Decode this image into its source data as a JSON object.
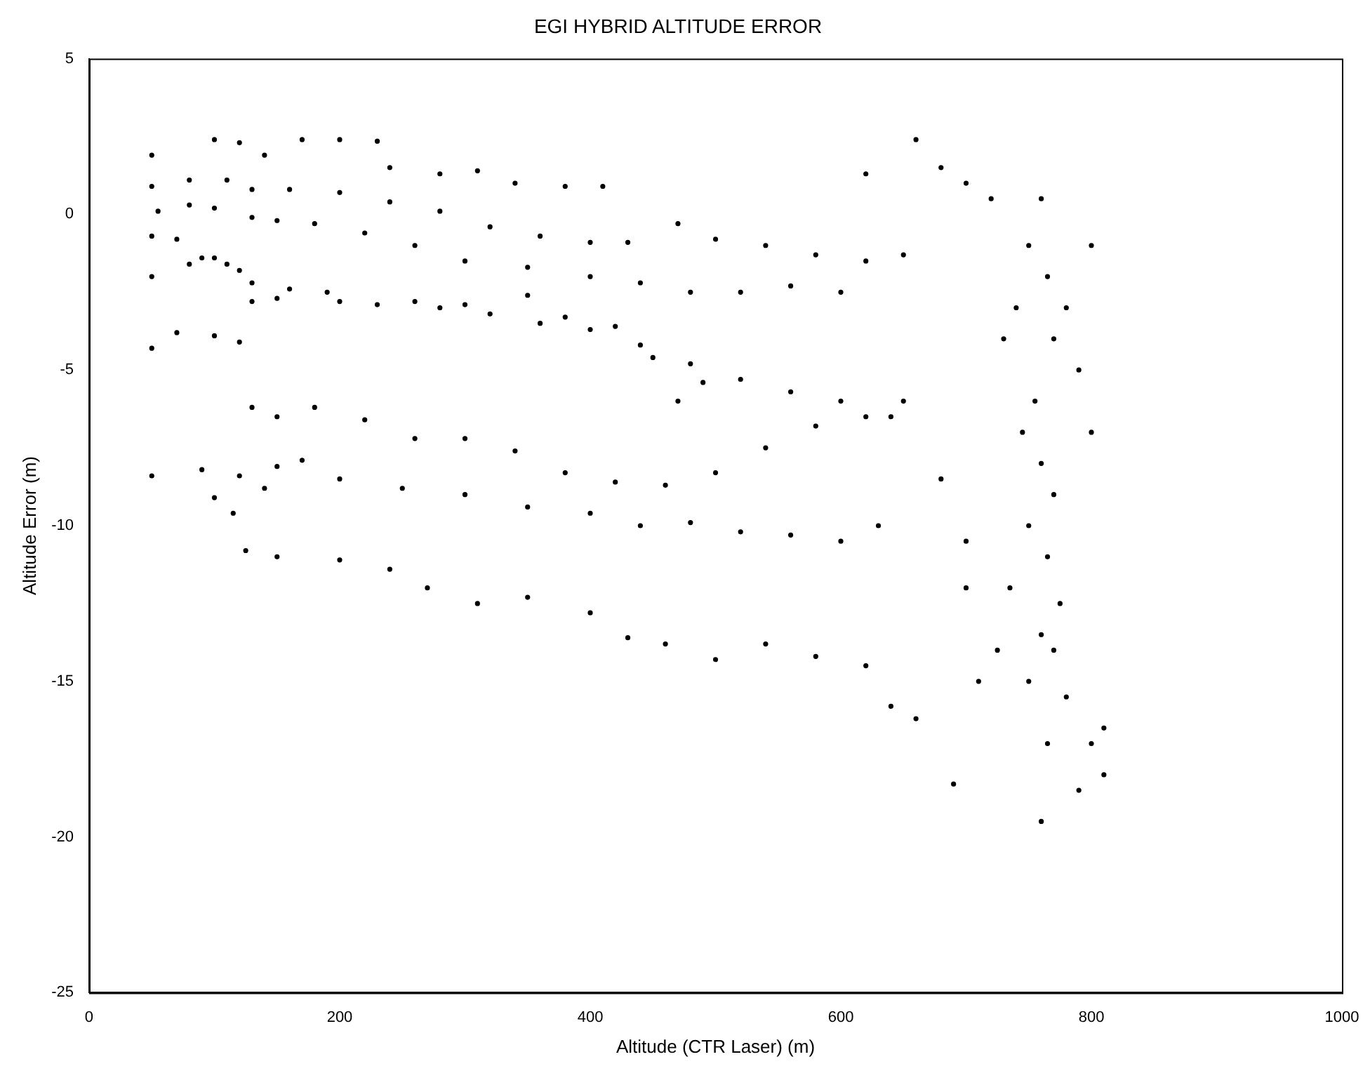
{
  "chart_data": {
    "type": "scatter",
    "title": "EGI HYBRID ALTITUDE ERROR",
    "xlabel": "Altitude (CTR Laser) (m)",
    "ylabel": "Altitude Error (m)",
    "xlim": [
      0,
      1000
    ],
    "xticks": [
      0,
      200,
      400,
      600,
      800,
      1000
    ],
    "ylim": [
      -25,
      5
    ],
    "yticks": [
      -25,
      -20,
      -15,
      -10,
      -5,
      0,
      5
    ],
    "grid": false,
    "legend": false,
    "marker": "circle",
    "series": [
      {
        "color": "#000000",
        "x": [
          50,
          100,
          120,
          140,
          170,
          200,
          230,
          240,
          280,
          310,
          340,
          380,
          410,
          50,
          80,
          110,
          130,
          160,
          200,
          240,
          280,
          320,
          360,
          400,
          430,
          470,
          500,
          540,
          580,
          620,
          650,
          55,
          80,
          100,
          130,
          150,
          180,
          220,
          260,
          300,
          350,
          400,
          440,
          480,
          520,
          560,
          600,
          50,
          70,
          90,
          110,
          130,
          160,
          190,
          230,
          280,
          320,
          360,
          400,
          440,
          480,
          520,
          560,
          600,
          640,
          50,
          80,
          100,
          120,
          130,
          150,
          200,
          260,
          300,
          350,
          380,
          420,
          450,
          470,
          490,
          50,
          70,
          100,
          120,
          130,
          150,
          180,
          220,
          260,
          300,
          340,
          380,
          420,
          460,
          500,
          540,
          580,
          620,
          50,
          90,
          120,
          140,
          150,
          170,
          200,
          250,
          300,
          350,
          400,
          440,
          480,
          520,
          560,
          600,
          630,
          100,
          115,
          125,
          150,
          200,
          240,
          270,
          310,
          350,
          400,
          430,
          460,
          500,
          540,
          580,
          620,
          640,
          660,
          650,
          680,
          700,
          700,
          710,
          690,
          660,
          680,
          620,
          700,
          720,
          740,
          750,
          760,
          765,
          770,
          755,
          760,
          770,
          750,
          765,
          775,
          760,
          770,
          750,
          780,
          765,
          760,
          790,
          800,
          810,
          800,
          790,
          780,
          745,
          735,
          725,
          730,
          800,
          810
        ],
        "values": [
          1.9,
          2.4,
          2.3,
          1.9,
          2.4,
          2.4,
          2.35,
          1.5,
          1.3,
          1.4,
          1.0,
          0.9,
          0.9,
          0.9,
          1.1,
          1.1,
          0.8,
          0.8,
          0.7,
          0.4,
          0.1,
          -0.4,
          -0.7,
          -0.9,
          -0.9,
          -0.3,
          -0.8,
          -1.0,
          -1.3,
          -1.5,
          -1.3,
          0.1,
          0.3,
          0.2,
          -0.1,
          -0.2,
          -0.3,
          -0.6,
          -1.0,
          -1.5,
          -1.7,
          -2.0,
          -2.2,
          -2.5,
          -2.5,
          -2.3,
          -2.5,
          -0.7,
          -0.8,
          -1.4,
          -1.6,
          -2.2,
          -2.4,
          -2.5,
          -2.9,
          -3.0,
          -3.2,
          -3.5,
          -3.7,
          -4.2,
          -4.8,
          -5.3,
          -5.7,
          -6.0,
          -6.5,
          -2.0,
          -1.6,
          -1.4,
          -1.8,
          -2.8,
          -2.7,
          -2.8,
          -2.8,
          -2.9,
          -2.6,
          -3.3,
          -3.6,
          -4.6,
          -6.0,
          -5.4,
          -4.3,
          -3.8,
          -3.9,
          -4.1,
          -6.2,
          -6.5,
          -6.2,
          -6.6,
          -7.2,
          -7.2,
          -7.6,
          -8.3,
          -8.6,
          -8.7,
          -8.3,
          -7.5,
          -6.8,
          -6.5,
          -8.4,
          -8.2,
          -8.4,
          -8.8,
          -8.1,
          -7.9,
          -8.5,
          -8.8,
          -9.0,
          -9.4,
          -9.6,
          -10.0,
          -9.9,
          -10.2,
          -10.3,
          -10.5,
          -10.0,
          -9.1,
          -9.6,
          -10.8,
          -11.0,
          -11.1,
          -11.4,
          -12.0,
          -12.5,
          -12.3,
          -12.8,
          -13.6,
          -13.8,
          -14.3,
          -13.8,
          -14.2,
          -14.5,
          -15.8,
          -16.2,
          -6.0,
          -8.5,
          -10.5,
          -12.0,
          -15.0,
          -18.3,
          2.4,
          1.5,
          1.3,
          1.0,
          0.5,
          -3.0,
          -1.0,
          0.5,
          -2.0,
          -4.0,
          -6.0,
          -8.0,
          -9.0,
          -10.0,
          -11.0,
          -12.5,
          -13.5,
          -14.0,
          -15.0,
          -15.5,
          -17.0,
          -19.5,
          -18.5,
          -17.0,
          -18.0,
          -7.0,
          -5.0,
          -3.0,
          -7.0,
          -12.0,
          -14.0,
          -4.0,
          -1.0,
          -16.5
        ]
      }
    ]
  }
}
